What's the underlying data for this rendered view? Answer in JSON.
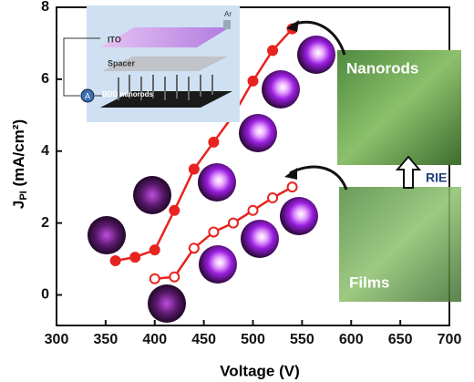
{
  "chart_data": {
    "type": "line",
    "x_label": "Voltage (V)",
    "y_label": {
      "main": "J",
      "sub": "PI",
      "unit": " (mA/cm²)"
    },
    "xlim": [
      300,
      700
    ],
    "xticks": [
      300,
      350,
      400,
      450,
      500,
      550,
      600,
      650,
      700
    ],
    "ylim": [
      -0.85,
      8
    ],
    "yticks": [
      0,
      2,
      4,
      6,
      8
    ],
    "series": [
      {
        "name": "Nanorods",
        "color": "#e8231f",
        "marker": "filled",
        "x": [
          360,
          380,
          400,
          420,
          440,
          460,
          480,
          500,
          520,
          540
        ],
        "values": [
          0.95,
          1.05,
          1.25,
          2.35,
          3.5,
          4.25,
          5.0,
          5.95,
          6.8,
          7.4
        ]
      },
      {
        "name": "Films",
        "color": "#e8231f",
        "marker": "open",
        "x": [
          400,
          420,
          440,
          460,
          480,
          500,
          520,
          540
        ],
        "values": [
          0.45,
          0.5,
          1.3,
          1.75,
          2.0,
          2.35,
          2.7,
          3.0
        ]
      }
    ],
    "annotations": {
      "rie": "RIE"
    },
    "inset_labels": {
      "ito": "ITO",
      "spacer": "Spacer",
      "bdd": "BDD nanorods",
      "ar": "Ar",
      "ammeter": "A"
    }
  }
}
